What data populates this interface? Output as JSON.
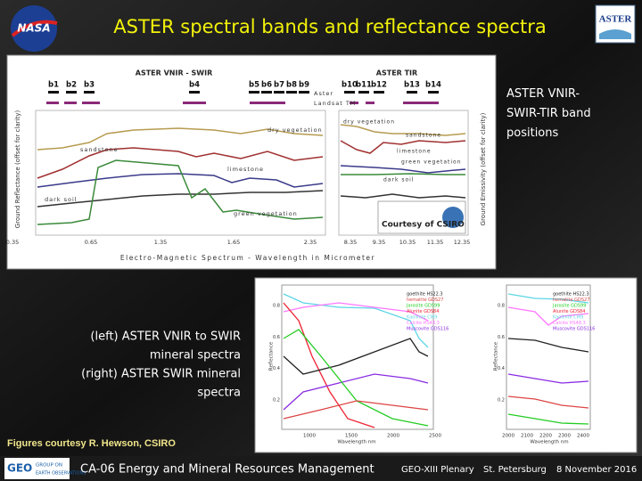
{
  "header": {
    "title": "ASTER spectral bands and reflectance spectra",
    "left_logo": "NASA",
    "right_logo": "ASTER"
  },
  "figure_top": {
    "group_labels": [
      "ASTER VNIR - SWIR",
      "ASTER TIR"
    ],
    "bands": [
      "b1",
      "b2",
      "b3",
      "b4",
      "b5",
      "b6",
      "b7",
      "b8",
      "b9",
      "b10",
      "b11",
      "b12",
      "b13",
      "b14"
    ],
    "sensors": [
      "Aster",
      "Landsat TM"
    ],
    "left_curves": [
      "dry vegetation",
      "sandstone",
      "limestone",
      "dark soil",
      "green vegetation"
    ],
    "right_curves": [
      "dry vegetation",
      "sandstone",
      "limestone",
      "green vegetation",
      "dark soil"
    ],
    "y_label_left": "Ground Reflectance (offset for clarity)",
    "y_label_right": "Ground Emissivity (offset for clarity)",
    "credit": "Courtesy of CSIRO",
    "x_ticks": [
      "0.35",
      "0.65",
      "1.35",
      "1.65",
      "2.35",
      "8.35",
      "9.35",
      "10.35",
      "11.35",
      "12.35"
    ],
    "x_label": "Electro-Magnetic Spectrum - Wavelength in Micrometer"
  },
  "caption_top": "ASTER VNIR-SWIR-TIR band positions",
  "figure_bottom": {
    "legend": [
      "goethite HS22.3",
      "hematite GDS27",
      "Jarosite GDS99",
      "Alunite GDS84",
      "Kaolinite CM9",
      "Calcite HS48.3",
      "Muscovite GDS116"
    ],
    "y_label": "Reflectance",
    "y_ticks": [
      "0.2",
      "0.4",
      "0.6",
      "0.8"
    ],
    "x_label": "Wavelength nm",
    "left_x_ticks": [
      "1000",
      "1500",
      "2000",
      "2500"
    ],
    "right_x_ticks": [
      "2000",
      "2100",
      "2200",
      "2300",
      "2400"
    ]
  },
  "caption_bottom": [
    "(left) ASTER VNIR to SWIR",
    "mineral spectra",
    "(right) ASTER SWIR mineral",
    "spectra"
  ],
  "credit_line": "Figures courtesy R. Hewson, CSIRO",
  "footer": {
    "geo_logo": [
      "GEO",
      "GROUP ON",
      "EARTH OBSERVATIONS"
    ],
    "session": "CA-06 Energy and Mineral Resources Management",
    "event": "GEO-XIII Plenary",
    "place": "St. Petersburg",
    "date": "8 November 2016"
  }
}
